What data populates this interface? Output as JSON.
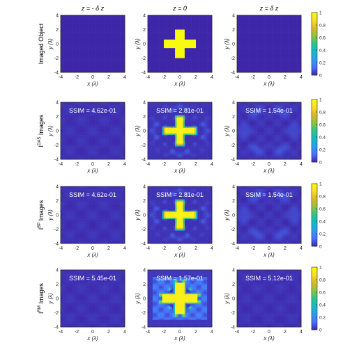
{
  "figure": {
    "column_titles": [
      "z = - δ z",
      "z = 0",
      "z = δ z"
    ],
    "x_label": "x (λ)",
    "y_label": "y (λ)",
    "ssim_prefix": "SSIM = "
  },
  "colors": {
    "colormap": [
      "#3e26a8",
      "#4772fa",
      "#2e9df0",
      "#15b9c7",
      "#2ec48c",
      "#8dc53e",
      "#dcb62c",
      "#fbdc27",
      "#f9fb0e"
    ],
    "frame": "#262626",
    "ssim_text": "#ffffff"
  },
  "chart_data": {
    "type": "heatmap",
    "x_range": [
      -4,
      4
    ],
    "y_range": [
      -4,
      4
    ],
    "x_ticks": [
      -4,
      -2,
      0,
      2,
      4
    ],
    "y_ticks": [
      -4,
      -2,
      0,
      2,
      4
    ],
    "colorbar_range": [
      0,
      1
    ],
    "colorbar_ticks": [
      0,
      0.2,
      0.4,
      0.6,
      0.8,
      1
    ],
    "colorbar_tick_labels": [
      "0",
      "0.2",
      "0.4",
      "0.6",
      "0.8",
      "1"
    ],
    "cross_object": {
      "arm_length": 2,
      "arm_half_width": 0.5
    },
    "rows": [
      {
        "label": "Imaged Object",
        "label_base": "Imaged Object",
        "label_sup": "",
        "panels": [
          {
            "z": "z = - δ z",
            "ssim": null,
            "pattern": "empty"
          },
          {
            "z": "z = 0",
            "ssim": null,
            "pattern": "object"
          },
          {
            "z": "z = δ z",
            "ssim": null,
            "pattern": "empty"
          }
        ]
      },
      {
        "label": "I^DAS Images",
        "label_base": "I",
        "label_sup": "DAS",
        "label_rest": " Images",
        "panels": [
          {
            "z": "z = - δ z",
            "ssim": "4.62e-01",
            "pattern": "faint"
          },
          {
            "z": "z = 0",
            "ssim": "2.81e-01",
            "pattern": "recon"
          },
          {
            "z": "z = δ z",
            "ssim": "1.54e-01",
            "pattern": "ring"
          }
        ]
      },
      {
        "label": "I^BP Images",
        "label_base": "I",
        "label_sup": "BP",
        "label_rest": " Images",
        "panels": [
          {
            "z": "z = - δ z",
            "ssim": "4.62e-01",
            "pattern": "faint"
          },
          {
            "z": "z = 0",
            "ssim": "2.81e-01",
            "pattern": "recon"
          },
          {
            "z": "z = δ z",
            "ssim": "1.54e-01",
            "pattern": "ring"
          }
        ]
      },
      {
        "label": "I^RM Images",
        "label_base": "I",
        "label_sup": "RM",
        "label_rest": " Images",
        "panels": [
          {
            "z": "z = - δ z",
            "ssim": "5.45e-01",
            "pattern": "faint"
          },
          {
            "z": "z = 0",
            "ssim": "1.57e-01",
            "pattern": "rm"
          },
          {
            "z": "z = δ z",
            "ssim": "5.12e-01",
            "pattern": "faint"
          }
        ]
      }
    ]
  }
}
